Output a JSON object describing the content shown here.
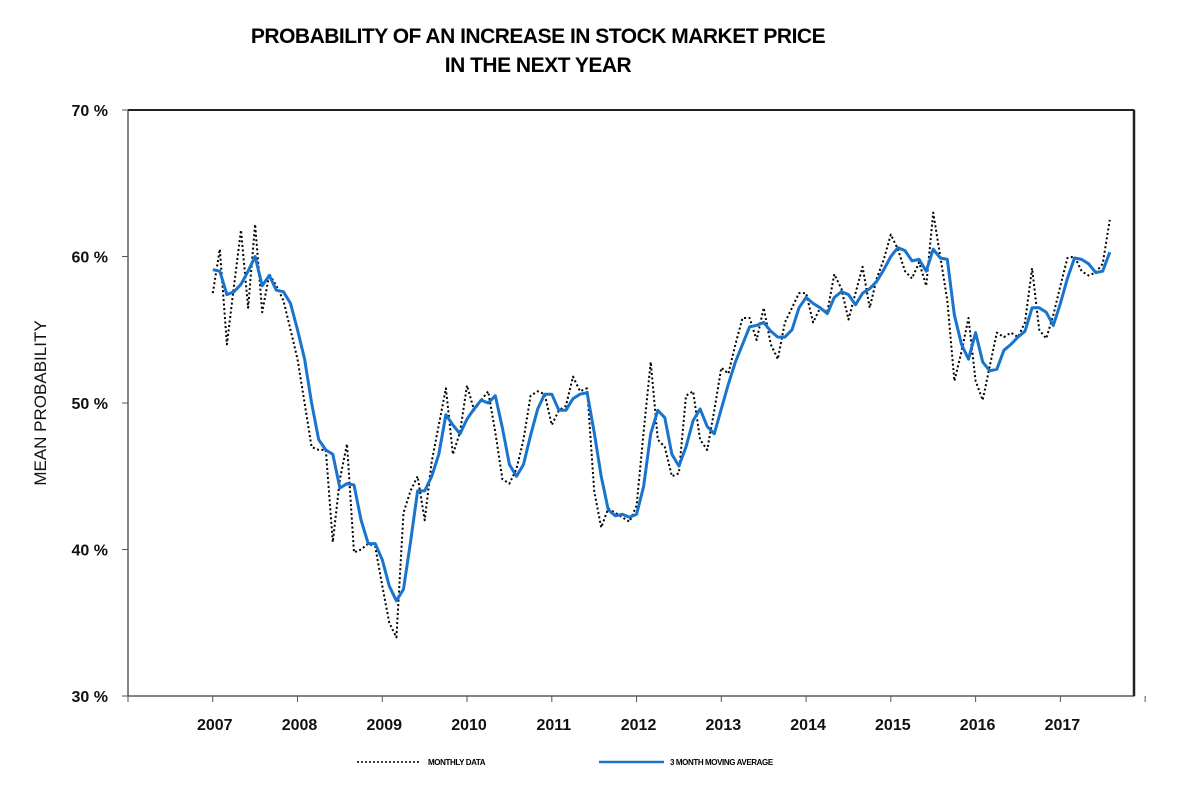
{
  "chart_data": {
    "type": "line",
    "title": [
      "PROBABILITY OF AN INCREASE IN STOCK MARKET PRICE",
      "IN THE NEXT YEAR"
    ],
    "xlabel": "",
    "ylabel": "MEAN PROBABILITY",
    "ylim": [
      30,
      70
    ],
    "yticks": [
      30,
      40,
      50,
      60,
      70
    ],
    "ytick_labels": [
      "30 %",
      "40 %",
      "50 %",
      "60 %",
      "70 %"
    ],
    "xlim": [
      2006,
      2018
    ],
    "xticks": [
      2006,
      2007,
      2008,
      2009,
      2010,
      2011,
      2012,
      2013,
      2014,
      2015,
      2016,
      2017,
      2018
    ],
    "xtick_labels": [
      "2007",
      "2008",
      "2009",
      "2010",
      "2011",
      "2012",
      "2013",
      "2014",
      "2015",
      "2016",
      "2017"
    ],
    "xtick_label_positions": [
      2007,
      2008,
      2009,
      2010,
      2011,
      2012,
      2013,
      2014,
      2015,
      2016,
      2017
    ],
    "x_start": 2007,
    "x_step": "monthly",
    "grid": false,
    "legend_position": "bottom-center",
    "series": [
      {
        "name": "MONTHLY DATA",
        "style": "dotted",
        "color": "#000000",
        "values": [
          57.5,
          60.5,
          54,
          58,
          61.8,
          56.5,
          62.2,
          56.2,
          58.8,
          58,
          57,
          55,
          53,
          50,
          47,
          46.8,
          46.8,
          40.5,
          44.8,
          47.2,
          39.8,
          40,
          40.4,
          40.2,
          37.5,
          35,
          34,
          42.5,
          44,
          45,
          42,
          46,
          48.5,
          51,
          46.5,
          48,
          51.2,
          49.5,
          50.2,
          50.8,
          48,
          44.8,
          44.5,
          45.5,
          47.5,
          50.5,
          50.8,
          50.6,
          48.5,
          49.5,
          49.8,
          51.8,
          50.8,
          51,
          44,
          41.5,
          42.8,
          42.5,
          42.2,
          41.9,
          43,
          48,
          52.8,
          47.5,
          47,
          45,
          45.2,
          50.5,
          50.8,
          47.5,
          46.8,
          49.5,
          52.4,
          52,
          54,
          55.8,
          55.8,
          54.3,
          56.5,
          54,
          53,
          55.5,
          56.5,
          57.5,
          57.5,
          55.5,
          56.5,
          56.2,
          58.8,
          57.8,
          55.7,
          57.5,
          59.3,
          56.5,
          58.5,
          59.8,
          61.5,
          60.5,
          59,
          58.5,
          59.6,
          58,
          63,
          60,
          57,
          51.5,
          53.5,
          55.8,
          51.5,
          50.2,
          52.5,
          54.8,
          54.5,
          54.8,
          54.5,
          55.5,
          59.2,
          55,
          54.4,
          56,
          58,
          59.9,
          60,
          59,
          58.7,
          58.9,
          59.5,
          62.5
        ]
      },
      {
        "name": "3 MONTH MOVING AVERAGE",
        "style": "solid",
        "color": "#1874cd",
        "values": [
          59.1,
          59,
          57.4,
          57.6,
          58.1,
          59,
          60,
          58,
          58.7,
          57.7,
          57.6,
          56.8,
          55,
          53,
          50,
          47.5,
          46.8,
          46.5,
          44.2,
          44.5,
          44.4,
          42,
          40.4,
          40.4,
          39.3,
          37.5,
          36.5,
          37.3,
          40.5,
          44,
          44,
          45,
          46.5,
          49.2,
          48.5,
          47.9,
          48.9,
          49.6,
          50.2,
          50,
          50.5,
          48.3,
          45.8,
          45,
          45.8,
          47.8,
          49.6,
          50.6,
          50.6,
          49.5,
          49.5,
          50.3,
          50.6,
          50.7,
          48,
          45,
          42.7,
          42.3,
          42.4,
          42.2,
          42.4,
          44.3,
          47.9,
          49.5,
          49,
          46.5,
          45.7,
          47,
          48.8,
          49.6,
          48.4,
          47.9,
          49.6,
          51.3,
          52.8,
          54,
          55.2,
          55.3,
          55.5,
          54.9,
          54.5,
          54.5,
          55,
          56.5,
          57.2,
          56.8,
          56.5,
          56.1,
          57.2,
          57.6,
          57.4,
          56.7,
          57.5,
          57.8,
          58.3,
          59.1,
          60,
          60.6,
          60.4,
          59.7,
          59.8,
          59,
          60.5,
          59.9,
          59.8,
          56,
          54,
          53,
          54.8,
          52.8,
          52.2,
          52.3,
          53.6,
          54,
          54.5,
          54.9,
          56.5,
          56.5,
          56.2,
          55.3,
          56.8,
          58.5,
          59.9,
          59.8,
          59.5,
          58.9,
          59,
          60.3
        ]
      }
    ]
  }
}
